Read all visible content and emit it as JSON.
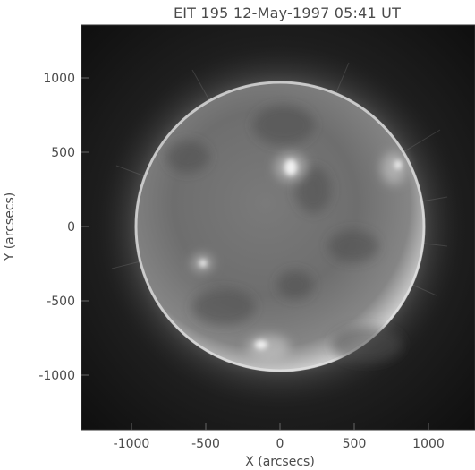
{
  "title": "EIT 195 12-May-1997 05:41 UT",
  "x_axis": {
    "label": "X (arcsecs)",
    "ticks": [
      "-1000",
      "-500",
      "0",
      "500",
      "1000"
    ]
  },
  "y_axis": {
    "label": "Y (arcsecs)",
    "ticks": [
      "1000",
      "500",
      "0",
      "-500",
      "-1000"
    ]
  },
  "colors": {
    "background": "#ffffff",
    "plot_background": "#1a1a1a",
    "text": "#4a4a4a",
    "disk_base": "#6b6b6b"
  }
}
